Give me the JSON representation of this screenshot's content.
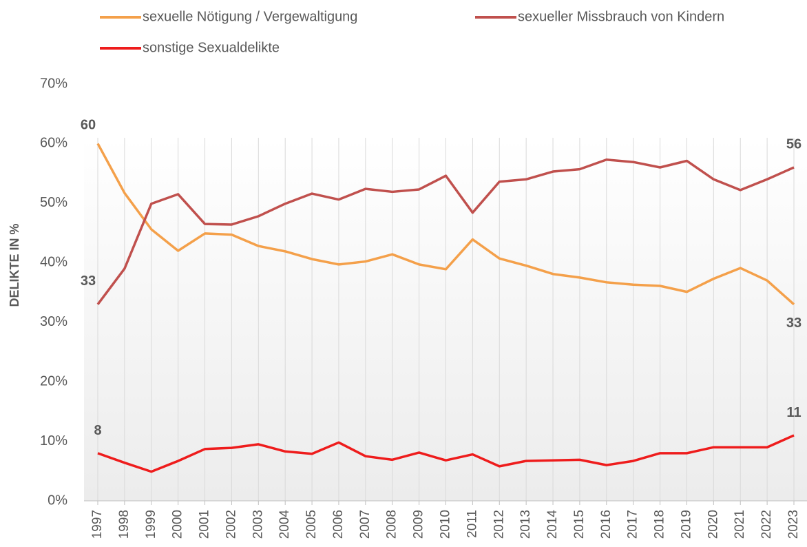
{
  "chart_data": {
    "type": "line",
    "y_axis_label": "DELIKTE IN %",
    "categories": [
      "1997",
      "1998",
      "1999",
      "2000",
      "2001",
      "2002",
      "2003",
      "2004",
      "2005",
      "2006",
      "2007",
      "2008",
      "2009",
      "2010",
      "2011",
      "2012",
      "2013",
      "2014",
      "2015",
      "2016",
      "2017",
      "2018",
      "2019",
      "2020",
      "2021",
      "2022",
      "2023"
    ],
    "series": [
      {
        "name": "sexuelle Nötigung / Vergewaltigung",
        "color": "#f4a04a",
        "values": [
          60,
          51.7,
          45.6,
          42,
          44.9,
          44.7,
          42.8,
          41.9,
          40.6,
          39.7,
          40.2,
          41.4,
          39.7,
          38.9,
          43.9,
          40.7,
          39.5,
          38.1,
          37.5,
          36.7,
          36.3,
          36.1,
          35.1,
          37.3,
          39.1,
          37,
          33
        ]
      },
      {
        "name": "sexueller Missbrauch von Kindern",
        "color": "#c0504d",
        "values": [
          33,
          39,
          49.9,
          51.5,
          46.5,
          46.4,
          47.8,
          49.9,
          51.6,
          50.6,
          52.4,
          51.9,
          52.3,
          54.6,
          48.4,
          53.6,
          54,
          55.3,
          55.7,
          57.3,
          56.9,
          56,
          57.1,
          54,
          52.2,
          54,
          56
        ]
      },
      {
        "name": "sonstige Sexualdelikte",
        "color": "#ee1c1c",
        "values": [
          8,
          6.4,
          4.9,
          6.7,
          8.7,
          8.9,
          9.5,
          8.3,
          7.9,
          9.8,
          7.5,
          6.9,
          8.1,
          6.8,
          7.8,
          5.8,
          6.7,
          6.8,
          6.9,
          6,
          6.7,
          8,
          8,
          9,
          9,
          9,
          11
        ]
      }
    ],
    "data_labels": "first_last",
    "ylim": [
      0,
      70
    ],
    "yticks": [
      {
        "value": 0,
        "label": "0%"
      },
      {
        "value": 10,
        "label": "10%"
      },
      {
        "value": 20,
        "label": "20%"
      },
      {
        "value": 30,
        "label": "30%"
      },
      {
        "value": 40,
        "label": "40%"
      },
      {
        "value": 50,
        "label": "50%"
      },
      {
        "value": 60,
        "label": "60%"
      },
      {
        "value": 70,
        "label": "70%"
      }
    ],
    "grid": "vertical"
  }
}
